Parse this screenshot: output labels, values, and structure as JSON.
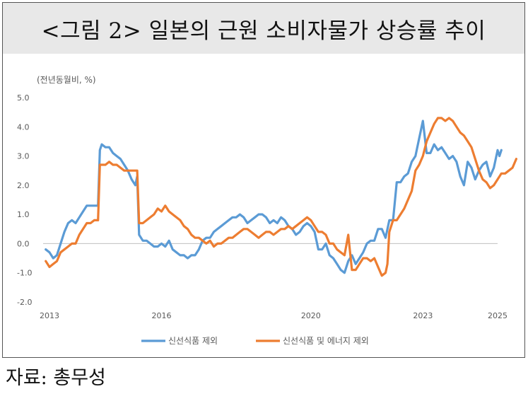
{
  "title": "<그림 2> 일본의 근원 소비자물가 상승률 추이",
  "unit_label": "(전년동월비, %)",
  "source": "자료: 총무성",
  "colors": {
    "series1": "#5b9bd5",
    "series2": "#ed7d31",
    "zero_line": "#bfbfbf",
    "title_bg": "#e8e8e8"
  },
  "chart_data": {
    "type": "line",
    "ylim": [
      -2.0,
      5.0
    ],
    "xlim": [
      2012.83,
      2025.0
    ],
    "y_ticks": [
      "5.0",
      "4.0",
      "3.0",
      "2.0",
      "1.0",
      "0.0",
      "-1.0",
      "-2.0"
    ],
    "y_tick_values": [
      5,
      4,
      3,
      2,
      1,
      0,
      -1,
      -2
    ],
    "x_ticks": [
      "2013",
      "2016",
      "2020",
      "2023",
      "2025"
    ],
    "x_tick_values": [
      2013,
      2016,
      2020,
      2023,
      2025
    ],
    "grid": false,
    "legend_position": "bottom",
    "series": [
      {
        "name": "신선식품 제외",
        "color": "#5b9bd5",
        "points": [
          [
            2012.9,
            -0.2
          ],
          [
            2013.0,
            -0.3
          ],
          [
            2013.1,
            -0.5
          ],
          [
            2013.2,
            -0.4
          ],
          [
            2013.3,
            0.0
          ],
          [
            2013.4,
            0.4
          ],
          [
            2013.5,
            0.7
          ],
          [
            2013.6,
            0.8
          ],
          [
            2013.7,
            0.7
          ],
          [
            2013.8,
            0.9
          ],
          [
            2013.9,
            1.1
          ],
          [
            2014.0,
            1.3
          ],
          [
            2014.1,
            1.3
          ],
          [
            2014.2,
            1.3
          ],
          [
            2014.3,
            1.3
          ],
          [
            2014.35,
            3.2
          ],
          [
            2014.4,
            3.4
          ],
          [
            2014.5,
            3.3
          ],
          [
            2014.6,
            3.3
          ],
          [
            2014.7,
            3.1
          ],
          [
            2014.8,
            3.0
          ],
          [
            2014.9,
            2.9
          ],
          [
            2015.0,
            2.7
          ],
          [
            2015.1,
            2.5
          ],
          [
            2015.2,
            2.2
          ],
          [
            2015.3,
            2.0
          ],
          [
            2015.35,
            2.3
          ],
          [
            2015.4,
            0.3
          ],
          [
            2015.5,
            0.1
          ],
          [
            2015.6,
            0.1
          ],
          [
            2015.7,
            0.0
          ],
          [
            2015.8,
            -0.1
          ],
          [
            2015.9,
            -0.1
          ],
          [
            2016.0,
            0.0
          ],
          [
            2016.1,
            -0.1
          ],
          [
            2016.2,
            0.1
          ],
          [
            2016.3,
            -0.2
          ],
          [
            2016.4,
            -0.3
          ],
          [
            2016.5,
            -0.4
          ],
          [
            2016.6,
            -0.4
          ],
          [
            2016.7,
            -0.5
          ],
          [
            2016.8,
            -0.4
          ],
          [
            2016.9,
            -0.4
          ],
          [
            2017.0,
            -0.2
          ],
          [
            2017.1,
            0.1
          ],
          [
            2017.2,
            0.2
          ],
          [
            2017.3,
            0.2
          ],
          [
            2017.4,
            0.4
          ],
          [
            2017.5,
            0.5
          ],
          [
            2017.6,
            0.6
          ],
          [
            2017.7,
            0.7
          ],
          [
            2017.8,
            0.8
          ],
          [
            2017.9,
            0.9
          ],
          [
            2018.0,
            0.9
          ],
          [
            2018.1,
            1.0
          ],
          [
            2018.2,
            0.9
          ],
          [
            2018.3,
            0.7
          ],
          [
            2018.4,
            0.8
          ],
          [
            2018.5,
            0.9
          ],
          [
            2018.6,
            1.0
          ],
          [
            2018.7,
            1.0
          ],
          [
            2018.8,
            0.9
          ],
          [
            2018.9,
            0.7
          ],
          [
            2019.0,
            0.8
          ],
          [
            2019.1,
            0.7
          ],
          [
            2019.2,
            0.9
          ],
          [
            2019.3,
            0.8
          ],
          [
            2019.4,
            0.6
          ],
          [
            2019.5,
            0.5
          ],
          [
            2019.6,
            0.3
          ],
          [
            2019.7,
            0.4
          ],
          [
            2019.8,
            0.6
          ],
          [
            2019.9,
            0.7
          ],
          [
            2020.0,
            0.6
          ],
          [
            2020.1,
            0.4
          ],
          [
            2020.2,
            -0.2
          ],
          [
            2020.3,
            -0.2
          ],
          [
            2020.4,
            0.0
          ],
          [
            2020.5,
            -0.4
          ],
          [
            2020.6,
            -0.5
          ],
          [
            2020.7,
            -0.7
          ],
          [
            2020.8,
            -0.9
          ],
          [
            2020.9,
            -1.0
          ],
          [
            2021.0,
            -0.6
          ],
          [
            2021.1,
            -0.4
          ],
          [
            2021.2,
            -0.7
          ],
          [
            2021.3,
            -0.5
          ],
          [
            2021.4,
            -0.3
          ],
          [
            2021.5,
            0.0
          ],
          [
            2021.6,
            0.1
          ],
          [
            2021.7,
            0.1
          ],
          [
            2021.8,
            0.5
          ],
          [
            2021.9,
            0.5
          ],
          [
            2022.0,
            0.2
          ],
          [
            2022.1,
            0.8
          ],
          [
            2022.2,
            0.8
          ],
          [
            2022.3,
            2.1
          ],
          [
            2022.4,
            2.1
          ],
          [
            2022.5,
            2.3
          ],
          [
            2022.6,
            2.4
          ],
          [
            2022.7,
            2.8
          ],
          [
            2022.8,
            3.0
          ],
          [
            2022.9,
            3.6
          ],
          [
            2023.0,
            4.2
          ],
          [
            2023.1,
            3.1
          ],
          [
            2023.2,
            3.1
          ],
          [
            2023.3,
            3.4
          ],
          [
            2023.4,
            3.2
          ],
          [
            2023.5,
            3.3
          ],
          [
            2023.6,
            3.1
          ],
          [
            2023.7,
            2.9
          ],
          [
            2023.8,
            3.0
          ],
          [
            2023.9,
            2.8
          ],
          [
            2024.0,
            2.3
          ],
          [
            2024.1,
            2.0
          ],
          [
            2024.2,
            2.8
          ],
          [
            2024.3,
            2.6
          ],
          [
            2024.4,
            2.2
          ],
          [
            2024.5,
            2.5
          ],
          [
            2024.6,
            2.7
          ],
          [
            2024.7,
            2.8
          ],
          [
            2024.8,
            2.3
          ],
          [
            2024.9,
            2.6
          ],
          [
            2025.0,
            3.2
          ],
          [
            2025.05,
            3.0
          ],
          [
            2025.1,
            3.2
          ]
        ]
      },
      {
        "name": "신선식품 및 에너지 제외",
        "color": "#ed7d31",
        "points": [
          [
            2012.9,
            -0.6
          ],
          [
            2013.0,
            -0.8
          ],
          [
            2013.1,
            -0.7
          ],
          [
            2013.2,
            -0.6
          ],
          [
            2013.3,
            -0.3
          ],
          [
            2013.4,
            -0.2
          ],
          [
            2013.5,
            -0.1
          ],
          [
            2013.6,
            0.0
          ],
          [
            2013.7,
            0.0
          ],
          [
            2013.8,
            0.3
          ],
          [
            2013.9,
            0.5
          ],
          [
            2014.0,
            0.7
          ],
          [
            2014.1,
            0.7
          ],
          [
            2014.2,
            0.8
          ],
          [
            2014.3,
            0.8
          ],
          [
            2014.35,
            2.7
          ],
          [
            2014.4,
            2.7
          ],
          [
            2014.5,
            2.7
          ],
          [
            2014.6,
            2.8
          ],
          [
            2014.7,
            2.7
          ],
          [
            2014.8,
            2.7
          ],
          [
            2014.9,
            2.6
          ],
          [
            2015.0,
            2.5
          ],
          [
            2015.1,
            2.5
          ],
          [
            2015.2,
            2.5
          ],
          [
            2015.3,
            2.5
          ],
          [
            2015.35,
            2.5
          ],
          [
            2015.4,
            0.7
          ],
          [
            2015.5,
            0.7
          ],
          [
            2015.6,
            0.8
          ],
          [
            2015.7,
            0.9
          ],
          [
            2015.8,
            1.0
          ],
          [
            2015.9,
            1.2
          ],
          [
            2016.0,
            1.1
          ],
          [
            2016.1,
            1.3
          ],
          [
            2016.2,
            1.1
          ],
          [
            2016.3,
            1.0
          ],
          [
            2016.4,
            0.9
          ],
          [
            2016.5,
            0.8
          ],
          [
            2016.6,
            0.6
          ],
          [
            2016.7,
            0.5
          ],
          [
            2016.8,
            0.3
          ],
          [
            2016.9,
            0.2
          ],
          [
            2017.0,
            0.2
          ],
          [
            2017.1,
            0.1
          ],
          [
            2017.2,
            0.0
          ],
          [
            2017.3,
            0.1
          ],
          [
            2017.4,
            -0.1
          ],
          [
            2017.5,
            0.0
          ],
          [
            2017.6,
            0.0
          ],
          [
            2017.7,
            0.1
          ],
          [
            2017.8,
            0.2
          ],
          [
            2017.9,
            0.2
          ],
          [
            2018.0,
            0.3
          ],
          [
            2018.1,
            0.4
          ],
          [
            2018.2,
            0.5
          ],
          [
            2018.3,
            0.5
          ],
          [
            2018.4,
            0.4
          ],
          [
            2018.5,
            0.3
          ],
          [
            2018.6,
            0.2
          ],
          [
            2018.7,
            0.3
          ],
          [
            2018.8,
            0.4
          ],
          [
            2018.9,
            0.4
          ],
          [
            2019.0,
            0.3
          ],
          [
            2019.1,
            0.4
          ],
          [
            2019.2,
            0.5
          ],
          [
            2019.3,
            0.5
          ],
          [
            2019.4,
            0.6
          ],
          [
            2019.5,
            0.5
          ],
          [
            2019.6,
            0.6
          ],
          [
            2019.7,
            0.7
          ],
          [
            2019.8,
            0.8
          ],
          [
            2019.9,
            0.9
          ],
          [
            2020.0,
            0.8
          ],
          [
            2020.1,
            0.6
          ],
          [
            2020.2,
            0.4
          ],
          [
            2020.3,
            0.4
          ],
          [
            2020.4,
            0.3
          ],
          [
            2020.5,
            0.0
          ],
          [
            2020.6,
            0.0
          ],
          [
            2020.7,
            -0.2
          ],
          [
            2020.8,
            -0.3
          ],
          [
            2020.9,
            -0.4
          ],
          [
            2021.0,
            0.3
          ],
          [
            2021.1,
            -0.9
          ],
          [
            2021.2,
            -0.9
          ],
          [
            2021.3,
            -0.7
          ],
          [
            2021.4,
            -0.5
          ],
          [
            2021.5,
            -0.5
          ],
          [
            2021.6,
            -0.6
          ],
          [
            2021.7,
            -0.5
          ],
          [
            2021.8,
            -0.8
          ],
          [
            2021.9,
            -1.1
          ],
          [
            2022.0,
            -1.0
          ],
          [
            2022.05,
            -0.7
          ],
          [
            2022.1,
            0.4
          ],
          [
            2022.2,
            0.8
          ],
          [
            2022.3,
            0.8
          ],
          [
            2022.4,
            1.0
          ],
          [
            2022.5,
            1.2
          ],
          [
            2022.6,
            1.5
          ],
          [
            2022.7,
            1.8
          ],
          [
            2022.8,
            2.5
          ],
          [
            2022.9,
            2.7
          ],
          [
            2023.0,
            3.0
          ],
          [
            2023.1,
            3.5
          ],
          [
            2023.2,
            3.8
          ],
          [
            2023.3,
            4.1
          ],
          [
            2023.4,
            4.3
          ],
          [
            2023.5,
            4.3
          ],
          [
            2023.6,
            4.2
          ],
          [
            2023.7,
            4.3
          ],
          [
            2023.8,
            4.2
          ],
          [
            2023.9,
            4.0
          ],
          [
            2024.0,
            3.8
          ],
          [
            2024.1,
            3.7
          ],
          [
            2024.2,
            3.5
          ],
          [
            2024.3,
            3.3
          ],
          [
            2024.4,
            2.9
          ],
          [
            2024.5,
            2.5
          ],
          [
            2024.6,
            2.2
          ],
          [
            2024.7,
            2.1
          ],
          [
            2024.8,
            1.9
          ],
          [
            2024.9,
            2.0
          ],
          [
            2025.0,
            2.2
          ],
          [
            2025.1,
            2.4
          ],
          [
            2025.2,
            2.4
          ],
          [
            2025.3,
            2.5
          ],
          [
            2025.4,
            2.6
          ],
          [
            2025.5,
            2.9
          ]
        ]
      }
    ]
  }
}
